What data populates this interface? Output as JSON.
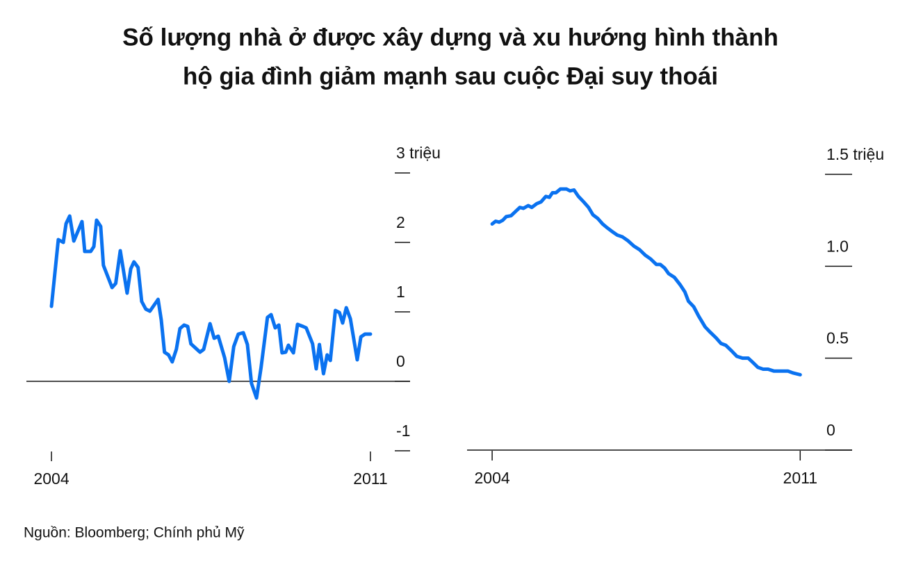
{
  "title": [
    "Số lượng nhà ở được xây dựng và xu hướng hình thành",
    "hộ gia đình giảm mạnh sau cuộc Đại suy thoái"
  ],
  "source": "Nguồn: Bloomberg; Chính phủ Mỹ",
  "chart_data": [
    {
      "type": "line",
      "color": "#0a72f0",
      "x": [
        2004.0,
        2004.15,
        2004.26,
        2004.32,
        2004.4,
        2004.49,
        2004.67,
        2004.73,
        2004.86,
        2004.93,
        2004.99,
        2005.08,
        2005.14,
        2005.33,
        2005.41,
        2005.51,
        2005.66,
        2005.74,
        2005.81,
        2005.9,
        2005.98,
        2006.07,
        2006.16,
        2006.34,
        2006.41,
        2006.48,
        2006.57,
        2006.65,
        2006.74,
        2006.82,
        2006.91,
        2006.99,
        2007.06,
        2007.26,
        2007.34,
        2007.48,
        2007.57,
        2007.66,
        2007.8,
        2007.9,
        2008.0,
        2008.1,
        2008.21,
        2008.3,
        2008.39,
        2008.5,
        2008.6,
        2008.74,
        2008.82,
        2008.91,
        2008.99,
        2009.06,
        2009.14,
        2009.2,
        2009.31,
        2009.4,
        2009.52,
        2009.59,
        2009.7,
        2009.73,
        2009.81,
        2009.88,
        2009.97,
        2010.05,
        2010.12,
        2010.23,
        2010.32,
        2010.39,
        2010.47,
        2010.56,
        2010.71,
        2010.79,
        2010.88,
        2011.0
      ],
      "values": [
        1.08,
        2.04,
        2.0,
        2.27,
        2.38,
        2.02,
        2.3,
        1.87,
        1.87,
        1.94,
        2.32,
        2.23,
        1.67,
        1.35,
        1.41,
        1.88,
        1.27,
        1.62,
        1.72,
        1.64,
        1.15,
        1.04,
        1.01,
        1.18,
        0.88,
        0.42,
        0.38,
        0.28,
        0.46,
        0.76,
        0.81,
        0.79,
        0.54,
        0.42,
        0.46,
        0.83,
        0.62,
        0.65,
        0.34,
        0.0,
        0.5,
        0.68,
        0.7,
        0.53,
        -0.03,
        -0.24,
        0.2,
        0.92,
        0.96,
        0.77,
        0.81,
        0.41,
        0.42,
        0.52,
        0.41,
        0.82,
        0.79,
        0.77,
        0.59,
        0.54,
        0.18,
        0.53,
        0.11,
        0.38,
        0.3,
        1.02,
        0.99,
        0.84,
        1.06,
        0.9,
        0.31,
        0.64,
        0.68,
        0.68
      ],
      "xlim": [
        2003.45,
        2011.87
      ],
      "xticks": [
        2004,
        2011
      ],
      "ylim": [
        -1,
        3
      ],
      "yticks": [
        -1,
        0,
        1,
        2,
        {
          "value": 3,
          "label": "3 triệu"
        }
      ]
    },
    {
      "type": "line",
      "color": "#0a72f0",
      "x": [
        2004.0,
        2004.08,
        2004.16,
        2004.24,
        2004.32,
        2004.43,
        2004.54,
        2004.63,
        2004.71,
        2004.82,
        2004.9,
        2005.01,
        2005.11,
        2005.22,
        2005.3,
        2005.37,
        2005.45,
        2005.55,
        2005.69,
        2005.77,
        2005.86,
        2005.96,
        2006.08,
        2006.19,
        2006.29,
        2006.4,
        2006.51,
        2006.61,
        2006.72,
        2006.84,
        2006.96,
        2007.08,
        2007.22,
        2007.35,
        2007.48,
        2007.6,
        2007.73,
        2007.82,
        2007.92,
        2008.01,
        2008.14,
        2008.27,
        2008.38,
        2008.46,
        2008.58,
        2008.69,
        2008.84,
        2008.96,
        2009.09,
        2009.2,
        2009.31,
        2009.44,
        2009.56,
        2009.69,
        2009.82,
        2009.91,
        2010.04,
        2010.16,
        2010.27,
        2010.4,
        2010.59,
        2010.72,
        2010.83,
        2011.0
      ],
      "values": [
        1.23,
        1.245,
        1.24,
        1.25,
        1.27,
        1.275,
        1.3,
        1.32,
        1.315,
        1.33,
        1.32,
        1.34,
        1.35,
        1.38,
        1.375,
        1.4,
        1.4,
        1.42,
        1.42,
        1.41,
        1.415,
        1.38,
        1.35,
        1.32,
        1.28,
        1.26,
        1.23,
        1.21,
        1.19,
        1.17,
        1.16,
        1.14,
        1.11,
        1.09,
        1.06,
        1.04,
        1.01,
        1.01,
        0.99,
        0.96,
        0.94,
        0.9,
        0.86,
        0.81,
        0.78,
        0.73,
        0.67,
        0.64,
        0.61,
        0.58,
        0.57,
        0.54,
        0.51,
        0.5,
        0.5,
        0.48,
        0.45,
        0.44,
        0.44,
        0.43,
        0.43,
        0.43,
        0.42,
        0.41
      ],
      "xlim": [
        2003.43,
        2012.18
      ],
      "xticks": [
        2004,
        2011
      ],
      "ylim": [
        0,
        1.5
      ],
      "yticks": [
        0,
        0.5,
        {
          "value": 1,
          "label": "1.0"
        },
        {
          "value": 1.5,
          "label": "1.5 triệu"
        }
      ]
    }
  ]
}
